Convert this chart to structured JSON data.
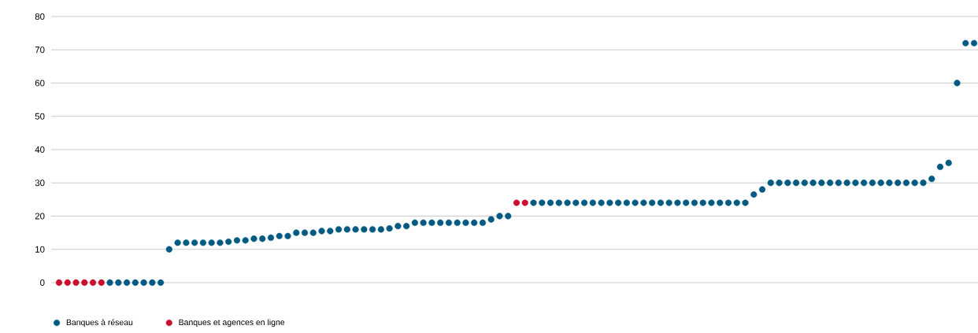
{
  "chart_data": {
    "type": "scatter",
    "categories": [
      null,
      null,
      null,
      null,
      null,
      null,
      null,
      null,
      null,
      null,
      null,
      null,
      null,
      null,
      null,
      null,
      null,
      null,
      null,
      null,
      null,
      null,
      null,
      null,
      null,
      null,
      null,
      null,
      null,
      null,
      null,
      null,
      null,
      null,
      null,
      null,
      null,
      null,
      null,
      null,
      null,
      null,
      null,
      null,
      null,
      null,
      null,
      null,
      null,
      null,
      null,
      null,
      null,
      null,
      null,
      null,
      null,
      null,
      null,
      null,
      null,
      null,
      null,
      null,
      null,
      null,
      null,
      null,
      null,
      null,
      null,
      null,
      null,
      null,
      null,
      null,
      null,
      null,
      null,
      null,
      null,
      null,
      null,
      null,
      null,
      null,
      null,
      null,
      null,
      null,
      null,
      null,
      null,
      null,
      null,
      null,
      null,
      null,
      null,
      null,
      null,
      null,
      null,
      null,
      null,
      null,
      null,
      null,
      null
    ],
    "series": [
      {
        "name": "Banques à réseau",
        "color": "#005a82",
        "values": [
          null,
          null,
          null,
          null,
          null,
          null,
          0,
          0,
          0,
          0,
          0,
          0,
          0,
          10,
          12,
          12,
          12,
          12,
          12,
          12,
          12.3,
          12.7,
          12.7,
          13.2,
          13.2,
          13.5,
          14,
          14,
          15,
          15,
          15,
          15.5,
          15.5,
          16,
          16,
          16,
          16,
          16,
          16,
          16.3,
          17,
          17,
          18,
          18,
          18,
          18,
          18,
          18,
          18,
          18,
          18,
          19,
          20,
          20,
          null,
          null,
          24,
          24,
          24,
          24,
          24,
          24,
          24,
          24,
          24,
          24,
          24,
          24,
          24,
          24,
          24,
          24,
          24,
          24,
          24,
          24,
          24,
          24,
          24,
          24,
          24,
          24,
          26.5,
          28,
          30,
          30,
          30,
          30,
          30,
          30,
          30,
          30,
          30,
          30,
          30,
          30,
          30,
          30,
          30,
          30,
          30,
          30,
          30,
          31.2,
          34.8,
          36,
          60,
          72,
          72
        ]
      },
      {
        "name": "Banques et agences en ligne",
        "color": "#c8102e",
        "values": [
          0,
          0,
          0,
          0,
          0,
          0,
          null,
          null,
          null,
          null,
          null,
          null,
          null,
          null,
          null,
          null,
          null,
          null,
          null,
          null,
          null,
          null,
          null,
          null,
          null,
          null,
          null,
          null,
          null,
          null,
          null,
          null,
          null,
          null,
          null,
          null,
          null,
          null,
          null,
          null,
          null,
          null,
          null,
          null,
          null,
          null,
          null,
          null,
          null,
          null,
          null,
          null,
          null,
          null,
          24,
          24,
          null,
          null,
          null,
          null,
          null,
          null,
          null,
          null,
          null,
          null,
          null,
          null,
          null,
          null,
          null,
          null,
          null,
          null,
          null,
          null,
          null,
          null,
          null,
          null,
          null,
          null,
          null,
          null,
          null,
          null,
          null,
          null,
          null,
          null,
          null,
          null,
          null,
          null,
          null,
          null,
          null,
          null,
          null,
          null,
          null,
          null,
          null,
          null,
          null,
          null,
          null,
          null,
          null
        ]
      }
    ],
    "ylim": [
      0,
      80
    ],
    "yticks": [
      0,
      10,
      20,
      30,
      40,
      50,
      60,
      70,
      80
    ],
    "grid": "y",
    "legend": "bottom left",
    "tick_labels": "y",
    "marker": "circle"
  }
}
